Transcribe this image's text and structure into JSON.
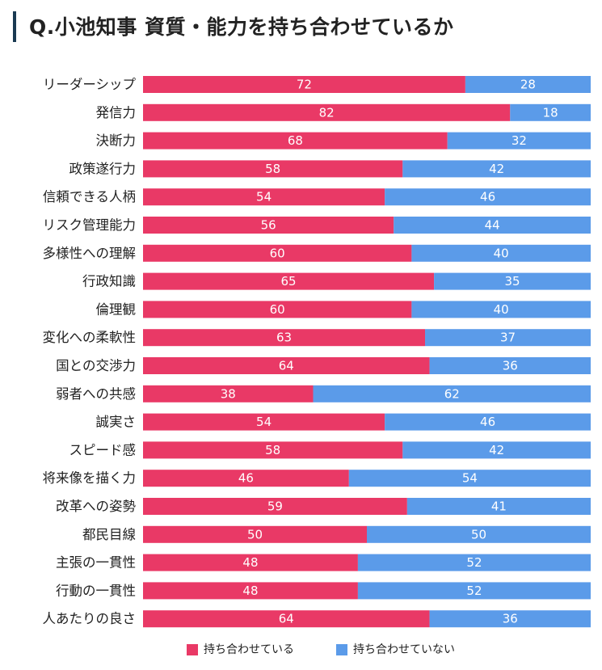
{
  "page": {
    "title": "Q.小池知事 資質・能力を持ち合わせているか"
  },
  "colors": {
    "have": "#e93966",
    "not_have": "#5b9be9",
    "title_bar": "#1a3a52"
  },
  "chart_data": {
    "type": "bar",
    "orientation": "horizontal",
    "stacked": true,
    "title": "Q.小池知事 資質・能力を持ち合わせているか",
    "categories": [
      "リーダーシップ",
      "発信力",
      "決断力",
      "政策遂行力",
      "信頼できる人柄",
      "リスク管理能力",
      "多様性への理解",
      "行政知識",
      "倫理観",
      "変化への柔軟性",
      "国との交渉力",
      "弱者への共感",
      "誠実さ",
      "スピード感",
      "将来像を描く力",
      "改革への姿勢",
      "都民目線",
      "主張の一貫性",
      "行動の一貫性",
      "人あたりの良さ"
    ],
    "series": [
      {
        "name": "持ち合わせている",
        "values": [
          72,
          82,
          68,
          58,
          54,
          56,
          60,
          65,
          60,
          63,
          64,
          38,
          54,
          58,
          46,
          59,
          50,
          48,
          48,
          64
        ]
      },
      {
        "name": "持ち合わせていない",
        "values": [
          28,
          18,
          32,
          42,
          46,
          44,
          40,
          35,
          40,
          37,
          36,
          62,
          46,
          42,
          54,
          41,
          50,
          52,
          52,
          36
        ]
      }
    ],
    "xlim": [
      0,
      100
    ],
    "legend": "bottom"
  }
}
